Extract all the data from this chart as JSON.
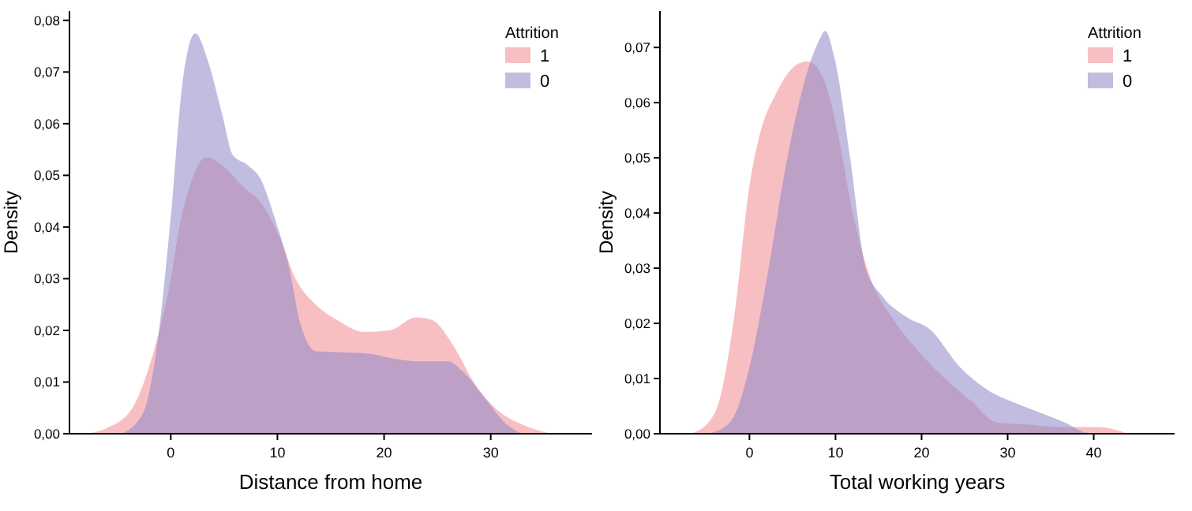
{
  "chart_data": [
    {
      "type": "area",
      "xlabel": "Distance from home",
      "ylabel": "Density",
      "legend_title": "Attrition",
      "legend": "top right",
      "xlim": [
        -9.5,
        39.5
      ],
      "xticks": [
        0,
        10,
        20,
        30
      ],
      "ylim": [
        0,
        0.0818
      ],
      "yticks": [
        {
          "value": 0,
          "label": "0,00"
        },
        {
          "value": 0.01,
          "label": "0,01"
        },
        {
          "value": 0.02,
          "label": "0,02"
        },
        {
          "value": 0.03,
          "label": "0,03"
        },
        {
          "value": 0.04,
          "label": "0,04"
        },
        {
          "value": 0.05,
          "label": "0,05"
        },
        {
          "value": 0.06,
          "label": "0,06"
        },
        {
          "value": 0.07,
          "label": "0,07"
        },
        {
          "value": 0.08,
          "label": "0,08"
        }
      ],
      "series": [
        {
          "name": "1",
          "color": "#f28b91",
          "x": [
            -8,
            -6.1,
            -3.6,
            -1.6,
            0,
            0.8,
            1.8,
            3.3,
            4.8,
            6.7,
            8.7,
            10.2,
            11.7,
            13.6,
            15.6,
            18.1,
            20.5,
            23,
            24.5,
            26.5,
            28.4,
            30.4,
            33.3,
            35.8
          ],
          "values": [
            0,
            0.001,
            0.005,
            0.016,
            0.03,
            0.04,
            0.048,
            0.0535,
            0.052,
            0.048,
            0.044,
            0.038,
            0.03,
            0.025,
            0.022,
            0.0197,
            0.02,
            0.0225,
            0.022,
            0.017,
            0.01,
            0.005,
            0.0015,
            0
          ]
        },
        {
          "name": "0",
          "color": "#8c86c9",
          "x": [
            -4.6,
            -2.6,
            -1.1,
            0,
            1.1,
            2.3,
            3.5,
            4.8,
            5.8,
            7.2,
            8.5,
            9.7,
            11,
            12.2,
            13.6,
            15.6,
            18.6,
            21,
            23.5,
            26,
            27.4,
            29.4,
            31.4,
            32.9
          ],
          "values": [
            0,
            0.004,
            0.02,
            0.042,
            0.068,
            0.0775,
            0.072,
            0.062,
            0.054,
            0.052,
            0.049,
            0.042,
            0.033,
            0.021,
            0.016,
            0.0158,
            0.0155,
            0.0145,
            0.014,
            0.014,
            0.012,
            0.007,
            0.002,
            0
          ]
        }
      ]
    },
    {
      "type": "area",
      "xlabel": "Total working years",
      "ylabel": "Density",
      "legend_title": "Attrition",
      "legend": "top right",
      "xlim": [
        -10.4,
        49.4
      ],
      "xticks": [
        0,
        10,
        20,
        30,
        40
      ],
      "ylim": [
        0,
        0.0766
      ],
      "yticks": [
        {
          "value": 0,
          "label": "0,00"
        },
        {
          "value": 0.01,
          "label": "0,01"
        },
        {
          "value": 0.02,
          "label": "0,02"
        },
        {
          "value": 0.03,
          "label": "0,03"
        },
        {
          "value": 0.04,
          "label": "0,04"
        },
        {
          "value": 0.05,
          "label": "0,05"
        },
        {
          "value": 0.06,
          "label": "0,06"
        },
        {
          "value": 0.07,
          "label": "0,07"
        }
      ],
      "series": [
        {
          "name": "1",
          "color": "#f28b91",
          "x": [
            -6.9,
            -4.8,
            -3.5,
            -1.7,
            0,
            1,
            3.2,
            5.6,
            6.8,
            8.7,
            10.2,
            12,
            14.1,
            16.6,
            19.6,
            22.7,
            25.7,
            28.8,
            31.8,
            36.1,
            40.4,
            44
          ],
          "values": [
            0,
            0.002,
            0.006,
            0.022,
            0.045,
            0.053,
            0.062,
            0.067,
            0.0675,
            0.064,
            0.055,
            0.04,
            0.028,
            0.021,
            0.015,
            0.01,
            0.006,
            0.002,
            0.0017,
            0.0012,
            0.0012,
            0
          ]
        },
        {
          "name": "0",
          "color": "#8c86c9",
          "x": [
            -4.8,
            -2.3,
            0,
            2,
            4.4,
            6.8,
            8,
            8.8,
            9.9,
            11.7,
            13.5,
            15.4,
            18.4,
            20.9,
            24.5,
            27.6,
            31.8,
            36.7,
            39.1,
            40.4
          ],
          "values": [
            0,
            0.002,
            0.012,
            0.028,
            0.05,
            0.066,
            0.071,
            0.073,
            0.068,
            0.05,
            0.03,
            0.025,
            0.021,
            0.019,
            0.012,
            0.008,
            0.005,
            0.002,
            0.0002,
            0
          ]
        }
      ]
    }
  ]
}
